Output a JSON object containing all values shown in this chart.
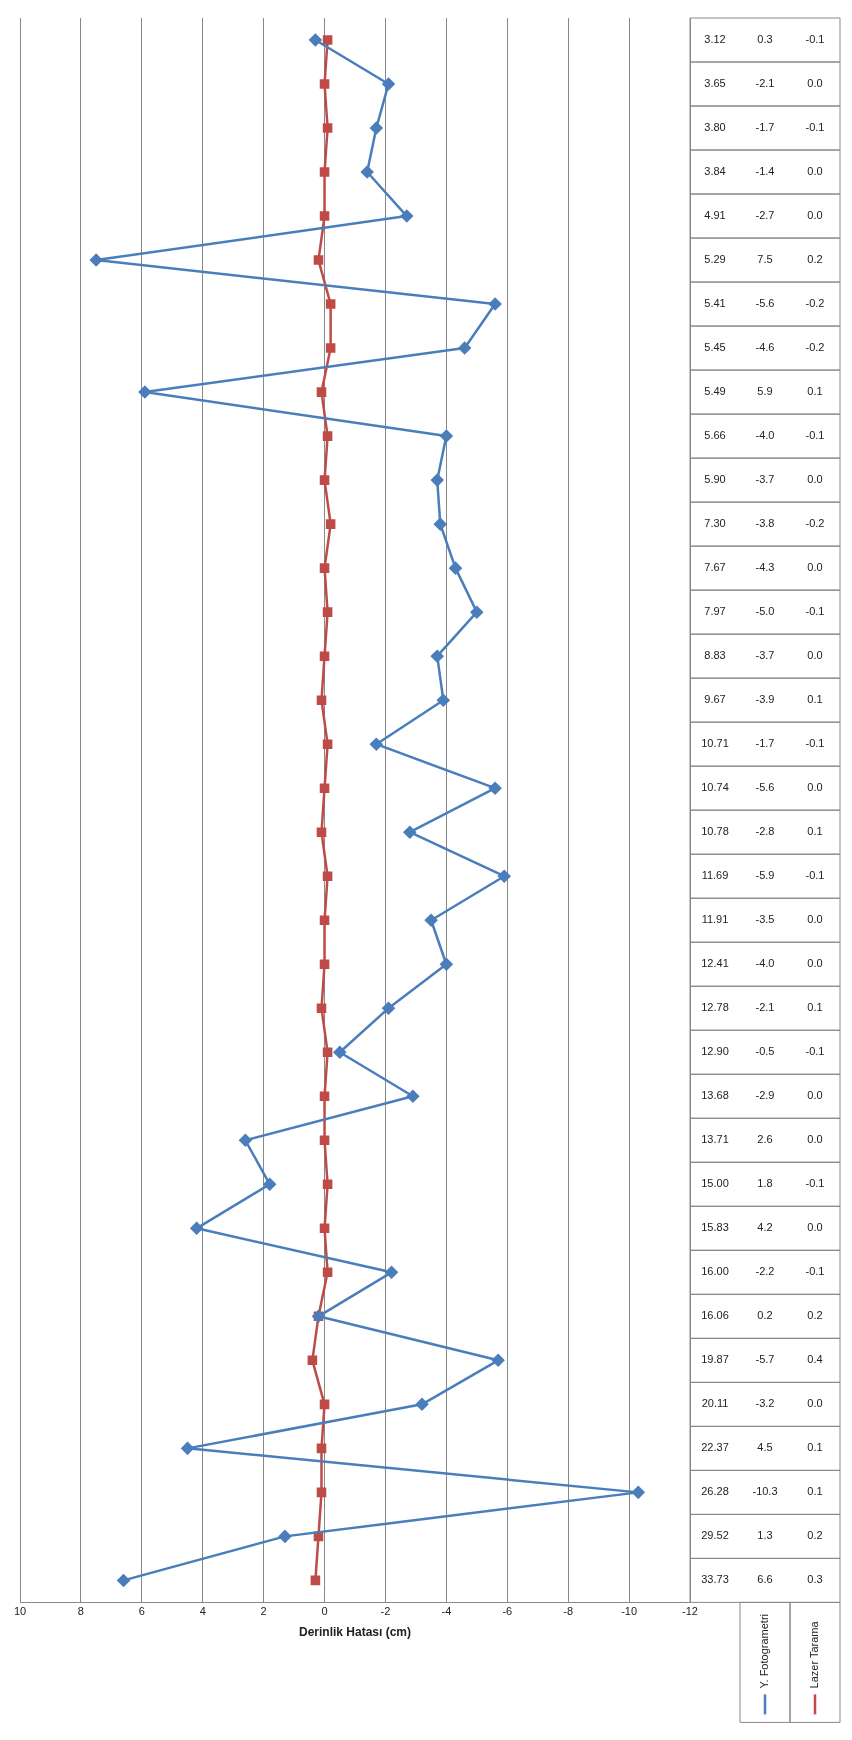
{
  "chart_data": {
    "type": "line",
    "orientation": "horizontal",
    "xlabel": "Derinlik Hatası (cm)",
    "categories": [
      "3.12",
      "3.65",
      "3.80",
      "3.84",
      "4.91",
      "5.29",
      "5.41",
      "5.45",
      "5.49",
      "5.66",
      "5.90",
      "7.30",
      "7.67",
      "7.97",
      "8.83",
      "9.67",
      "10.71",
      "10.74",
      "10.78",
      "11.69",
      "11.91",
      "12.41",
      "12.78",
      "12.90",
      "13.68",
      "13.71",
      "15.00",
      "15.83",
      "16.00",
      "16.06",
      "19.87",
      "20.11",
      "22.37",
      "26.28",
      "29.52",
      "33.73"
    ],
    "series": [
      {
        "name": "Y. Fotogrametri",
        "color": "#4a7ebb",
        "marker": "diamond",
        "values": [
          0.3,
          -2.1,
          -1.7,
          -1.4,
          -2.7,
          7.5,
          -5.6,
          -4.6,
          5.9,
          -4.0,
          -3.7,
          -3.8,
          -4.3,
          -5.0,
          -3.7,
          -3.9,
          -1.7,
          -5.6,
          -2.8,
          -5.9,
          -3.5,
          -4.0,
          -2.1,
          -0.5,
          -2.9,
          2.6,
          1.8,
          4.2,
          -2.2,
          0.2,
          -5.7,
          -3.2,
          4.5,
          -10.3,
          1.3,
          6.6
        ],
        "value_labels": [
          "0.3",
          "-2.1",
          "-1.7",
          "-1.4",
          "-2.7",
          "7.5",
          "-5.6",
          "-4.6",
          "5.9",
          "-4.0",
          "-3.7",
          "-3.8",
          "-4.3",
          "-5.0",
          "-3.7",
          "-3.9",
          "-1.7",
          "-5.6",
          "-2.8",
          "-5.9",
          "-3.5",
          "-4.0",
          "-2.1",
          "-0.5",
          "-2.9",
          "2.6",
          "1.8",
          "4.2",
          "-2.2",
          "0.2",
          "-5.7",
          "-3.2",
          "4.5",
          "-10.3",
          "1.3",
          "6.6"
        ]
      },
      {
        "name": "Lazer Tarama",
        "color": "#be4b48",
        "marker": "square",
        "values": [
          -0.1,
          0.0,
          -0.1,
          0.0,
          0.0,
          0.2,
          -0.2,
          -0.2,
          0.1,
          -0.1,
          0.0,
          -0.2,
          0.0,
          -0.1,
          0.0,
          0.1,
          -0.1,
          0.0,
          0.1,
          -0.1,
          0.0,
          0.0,
          0.1,
          -0.1,
          0.0,
          0.0,
          -0.1,
          0.0,
          -0.1,
          0.2,
          0.4,
          0.0,
          0.1,
          0.1,
          0.2,
          0.3
        ],
        "value_labels": [
          "-0.1",
          "0.0",
          "-0.1",
          "0.0",
          "0.0",
          "0.2",
          "-0.2",
          "-0.2",
          "0.1",
          "-0.1",
          "0.0",
          "-0.2",
          "0.0",
          "-0.1",
          "0.0",
          "0.1",
          "-0.1",
          "0.0",
          "0.1",
          "-0.1",
          "0.0",
          "0.0",
          "0.1",
          "-0.1",
          "0.0",
          "0.0",
          "-0.1",
          "0.0",
          "-0.1",
          "0.2",
          "0.4",
          "0.0",
          "0.1",
          "0.1",
          "0.2",
          "0.3"
        ]
      }
    ],
    "xlim": [
      10,
      -12
    ],
    "xticks": [
      10,
      8,
      6,
      4,
      2,
      0,
      -2,
      -4,
      -6,
      -8,
      -10,
      -12
    ],
    "grid": "x",
    "legend": "bottom"
  }
}
